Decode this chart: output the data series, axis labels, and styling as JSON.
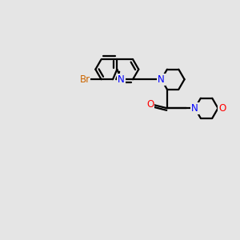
{
  "bg_color": "#e5e5e5",
  "bond_color": "#000000",
  "N_color": "#0000ff",
  "O_color": "#ff0000",
  "Br_color": "#cc6600",
  "line_width": 1.6,
  "figsize": [
    3.0,
    3.0
  ],
  "dpi": 100,
  "xlim": [
    0,
    10
  ],
  "ylim": [
    0,
    10
  ]
}
